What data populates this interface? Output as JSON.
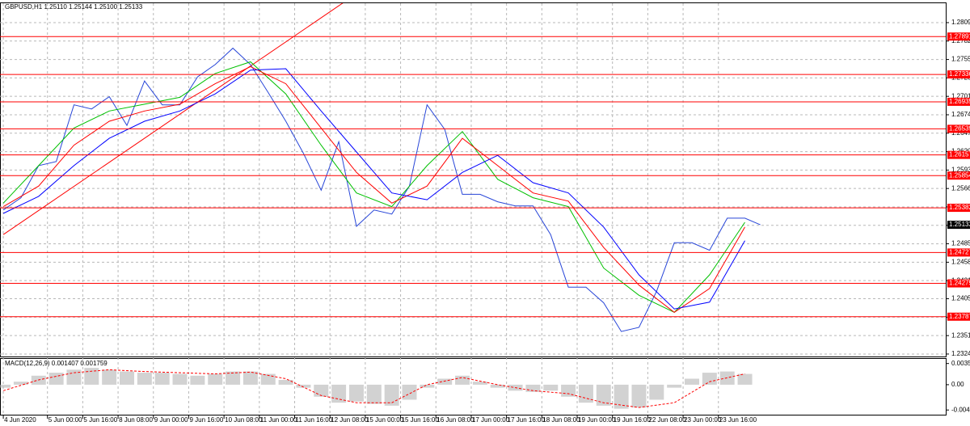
{
  "chart_data": [
    {
      "type": "line",
      "title": "GBPUSD,H1  1.25110 1.25144 1.25100 1.25133",
      "xlim": [
        -1.5,
        427
      ],
      "ylim": [
        1.23204,
        1.28379
      ],
      "grid": true,
      "xticks": [
        {
          "value": 0,
          "label": "4 Jun 2020"
        },
        {
          "value": 20,
          "label": "5 Jun 00:00"
        },
        {
          "value": 36,
          "label": "5 Jun 16:00"
        },
        {
          "value": 52,
          "label": "8 Jun 08:00"
        },
        {
          "value": 68,
          "label": "9 Jun 00:00"
        },
        {
          "value": 84,
          "label": "9 Jun 16:00"
        },
        {
          "value": 100,
          "label": "10 Jun 08:00"
        },
        {
          "value": 116,
          "label": "11 Jun 00:00"
        },
        {
          "value": 132,
          "label": "11 Jun 16:00"
        },
        {
          "value": 148,
          "label": "12 Jun 08:00"
        },
        {
          "value": 164,
          "label": "15 Jun 00:00"
        },
        {
          "value": 180,
          "label": "15 Jun 16:00"
        },
        {
          "value": 196,
          "label": "16 Jun 08:00"
        },
        {
          "value": 212,
          "label": "17 Jun 00:00"
        },
        {
          "value": 228,
          "label": "17 Jun 16:00"
        },
        {
          "value": 244,
          "label": "18 Jun 08:00"
        },
        {
          "value": 260,
          "label": "19 Jun 00:00"
        },
        {
          "value": 276,
          "label": "19 Jun 16:00"
        },
        {
          "value": 292,
          "label": "22 Jun 08:00"
        },
        {
          "value": 308,
          "label": "23 Jun 00:00"
        },
        {
          "value": 324,
          "label": "23 Jun 16:00"
        }
      ],
      "yticks": [
        1.28095,
        1.27825,
        1.27555,
        1.27285,
        1.27015,
        1.26745,
        1.26475,
        1.26205,
        1.25935,
        1.25665,
        1.25395,
        1.25125,
        1.24855,
        1.24585,
        1.24315,
        {
          "value": 1.2405,
          "label": "1.24050"
        },
        {
          "value": 1.2378,
          "label": "1.23780"
        },
        {
          "value": 1.2351,
          "label": "1.23510"
        },
        {
          "value": 1.2324,
          "label": "1.23240"
        }
      ],
      "levels": [
        1.27891,
        1.27336,
        1.26935,
        1.26539,
        1.26157,
        1.25854,
        1.25382,
        1.24727,
        1.24275,
        1.23787
      ],
      "level_color": "#ff0000",
      "last_price": 1.25133,
      "trendline": {
        "color": "#ff0000",
        "x": [
          0,
          156
        ],
        "values": [
          1.2499,
          1.2843
        ]
      },
      "series": [
        {
          "color": "#2846d8",
          "x": [
            0,
            8,
            16,
            24,
            32,
            40,
            48,
            56,
            64,
            72,
            80,
            88,
            96,
            104,
            112,
            120,
            128,
            136,
            144,
            152,
            160,
            168,
            176,
            184,
            192,
            200,
            208,
            216,
            224,
            232,
            240,
            248,
            256,
            264,
            272,
            280,
            288,
            296,
            304,
            312,
            320,
            328,
            336,
            343
          ],
          "values": [
            1.2535,
            1.2553,
            1.26,
            1.2606,
            1.2689,
            1.2683,
            1.2701,
            1.2659,
            1.2724,
            1.2689,
            1.2689,
            1.273,
            1.2748,
            1.2772,
            1.2748,
            1.2707,
            1.2665,
            1.2618,
            1.2564,
            1.2635,
            1.2511,
            1.2535,
            1.2529,
            1.257,
            1.2689,
            1.2653,
            1.2558,
            1.2558,
            1.2547,
            1.2541,
            1.2541,
            1.2499,
            1.2422,
            1.2422,
            1.2399,
            1.2357,
            1.2363,
            1.2416,
            1.2487,
            1.2487,
            1.2476,
            1.2523,
            1.2523,
            1.25133
          ]
        },
        {
          "color": "#00c000",
          "x": [
            0,
            16,
            32,
            48,
            64,
            80,
            96,
            112,
            128,
            144,
            160,
            176,
            192,
            208,
            224,
            240,
            256,
            272,
            288,
            304,
            320,
            336
          ],
          "values": [
            1.2545,
            1.26,
            1.2655,
            1.268,
            1.269,
            1.27,
            1.2735,
            1.2752,
            1.2705,
            1.263,
            1.256,
            1.254,
            1.26,
            1.265,
            1.258,
            1.2553,
            1.254,
            1.245,
            1.241,
            1.2385,
            1.244,
            1.2517
          ]
        },
        {
          "color": "#ff0000",
          "x": [
            0,
            16,
            32,
            48,
            64,
            80,
            96,
            112,
            128,
            144,
            160,
            176,
            192,
            208,
            224,
            240,
            256,
            272,
            288,
            304,
            320,
            336
          ],
          "values": [
            1.254,
            1.257,
            1.263,
            1.2665,
            1.268,
            1.269,
            1.272,
            1.2745,
            1.272,
            1.2655,
            1.259,
            1.2545,
            1.257,
            1.264,
            1.26,
            1.256,
            1.2548,
            1.248,
            1.2425,
            1.2385,
            1.242,
            1.251
          ]
        },
        {
          "color": "#0000ff",
          "x": [
            0,
            16,
            32,
            48,
            64,
            80,
            96,
            112,
            128,
            144,
            160,
            176,
            192,
            208,
            224,
            240,
            256,
            272,
            288,
            304,
            320,
            336
          ],
          "values": [
            1.253,
            1.2555,
            1.26,
            1.264,
            1.2665,
            1.268,
            1.2705,
            1.274,
            1.2742,
            1.268,
            1.262,
            1.256,
            1.255,
            1.259,
            1.2615,
            1.2575,
            1.256,
            1.251,
            1.244,
            1.239,
            1.24,
            1.249
          ]
        }
      ]
    },
    {
      "type": "macd",
      "title": "MACD(12,26,9) 0.001407 0.001759",
      "ylim": [
        -0.005,
        0.0043
      ],
      "yticks": [
        0.003532,
        {
          "value": 0,
          "label": "0.00"
        },
        -0.004218
      ],
      "histogram": {
        "color": "#b4b4b4",
        "x": [
          0,
          8,
          16,
          24,
          32,
          40,
          48,
          56,
          64,
          72,
          80,
          88,
          96,
          104,
          112,
          120,
          128,
          136,
          144,
          152,
          160,
          168,
          176,
          184,
          192,
          200,
          208,
          216,
          224,
          232,
          240,
          248,
          256,
          264,
          272,
          280,
          288,
          296,
          304,
          312,
          320,
          328,
          336
        ],
        "values": [
          -0.0005,
          0.0005,
          0.0015,
          0.002,
          0.0025,
          0.0028,
          0.0025,
          0.0022,
          0.002,
          0.002,
          0.0018,
          0.0015,
          0.0018,
          0.0022,
          0.0022,
          0.0018,
          0.0008,
          -0.0005,
          -0.002,
          -0.003,
          -0.0028,
          -0.0032,
          -0.0035,
          -0.0025,
          -0.0005,
          0.001,
          0.0015,
          0.0005,
          -0.0005,
          -0.001,
          -0.0012,
          -0.001,
          -0.002,
          -0.003,
          -0.0035,
          -0.004,
          -0.0038,
          -0.0025,
          -0.0005,
          0.001,
          0.002,
          0.0022,
          0.0018
        ]
      },
      "signal": {
        "color": "#ff0000",
        "x": [
          0,
          16,
          32,
          48,
          64,
          80,
          96,
          112,
          128,
          144,
          160,
          176,
          192,
          208,
          224,
          240,
          256,
          272,
          288,
          304,
          320,
          336
        ],
        "values": [
          -0.001,
          0.0008,
          0.002,
          0.0025,
          0.0022,
          0.002,
          0.0018,
          0.0021,
          0.001,
          -0.0018,
          -0.003,
          -0.003,
          0,
          0.0012,
          0,
          -0.001,
          -0.0015,
          -0.003,
          -0.0038,
          -0.003,
          0.0005,
          0.0018
        ]
      }
    }
  ]
}
